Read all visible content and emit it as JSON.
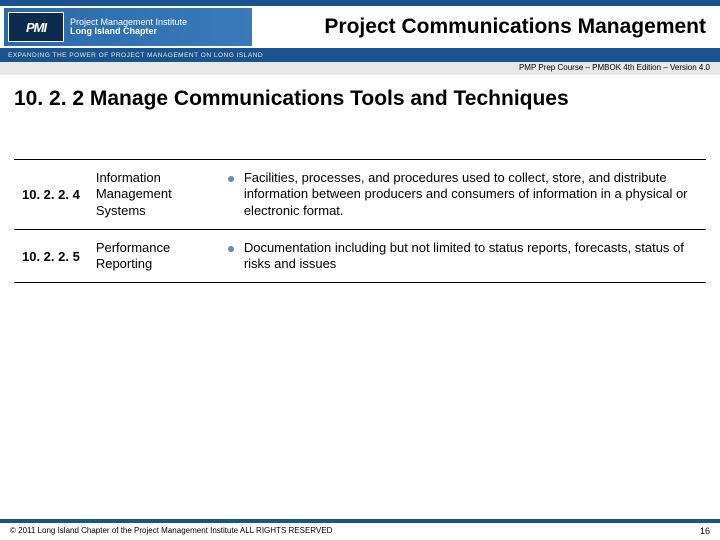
{
  "header": {
    "logo_acronym": "PMI",
    "logo_line1": "Project Management Institute",
    "logo_line2": "Long Island Chapter",
    "banner_text": "EXPANDING THE POWER OF PROJECT MANAGEMENT ON LONG ISLAND",
    "title": "Project Communications Management",
    "course_line": "PMP Prep Course – PMBOK 4th Edition – Version 4.0"
  },
  "section": {
    "title": "10. 2. 2 Manage Communications Tools and Techniques"
  },
  "rows": [
    {
      "num": "10. 2. 2. 4",
      "name": "Information Management Systems",
      "desc": "Facilities, processes, and procedures used to collect, store, and distribute information between producers and consumers of information in a physical or electronic format."
    },
    {
      "num": "10. 2. 2. 5",
      "name": "Performance Reporting",
      "desc": "Documentation including but not limited to status reports, forecasts, status of risks and issues"
    }
  ],
  "footer": {
    "copyright": "© 2011 Long Island Chapter of the Project Management Institute  ALL RIGHTS RESERVED",
    "page": "16"
  },
  "colors": {
    "brand_blue": "#1a5490",
    "bullet": "#6a8aa8",
    "grey_bar": "#e8e8ea"
  }
}
